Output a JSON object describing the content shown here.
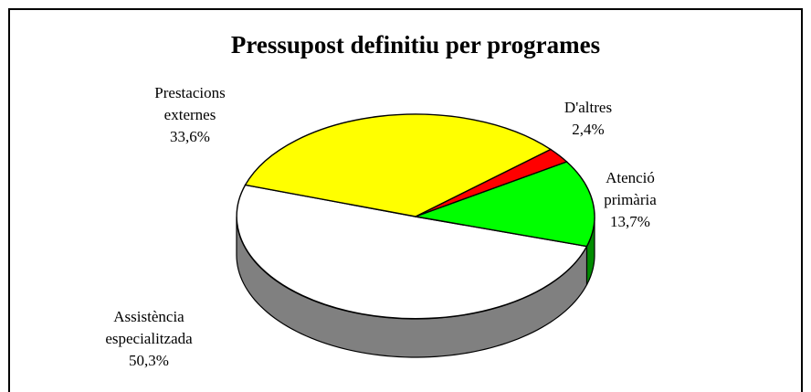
{
  "chart_data": {
    "type": "pie",
    "title": "Pressupost definitiu per programes",
    "slices": [
      {
        "label_lines": [
          "Assistència",
          "especialitzada"
        ],
        "pct_text": "50,3%",
        "value": 50.3,
        "color": "#ffffff"
      },
      {
        "label_lines": [
          "Atenció",
          "primària"
        ],
        "pct_text": "13,7%",
        "value": 13.7,
        "color": "#00ff00"
      },
      {
        "label_lines": [
          "D'altres"
        ],
        "pct_text": "2,4%",
        "value": 2.4,
        "color": "#ff0000"
      },
      {
        "label_lines": [
          "Prestacions",
          "externes"
        ],
        "pct_text": "33,6%",
        "value": 33.6,
        "color": "#ffff00"
      }
    ],
    "side_color": "#808080",
    "style": "3d-pie"
  }
}
